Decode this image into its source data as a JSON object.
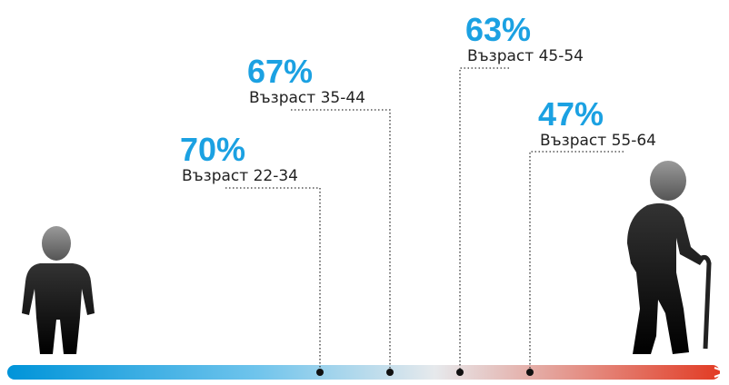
{
  "items": [
    {
      "percent": "70%",
      "label": "Възраст 22-34"
    },
    {
      "percent": "67%",
      "label": "Възраст 35-44"
    },
    {
      "percent": "63%",
      "label": "Възраст 45-54"
    },
    {
      "percent": "47%",
      "label": "Възраст 55-64"
    }
  ]
}
